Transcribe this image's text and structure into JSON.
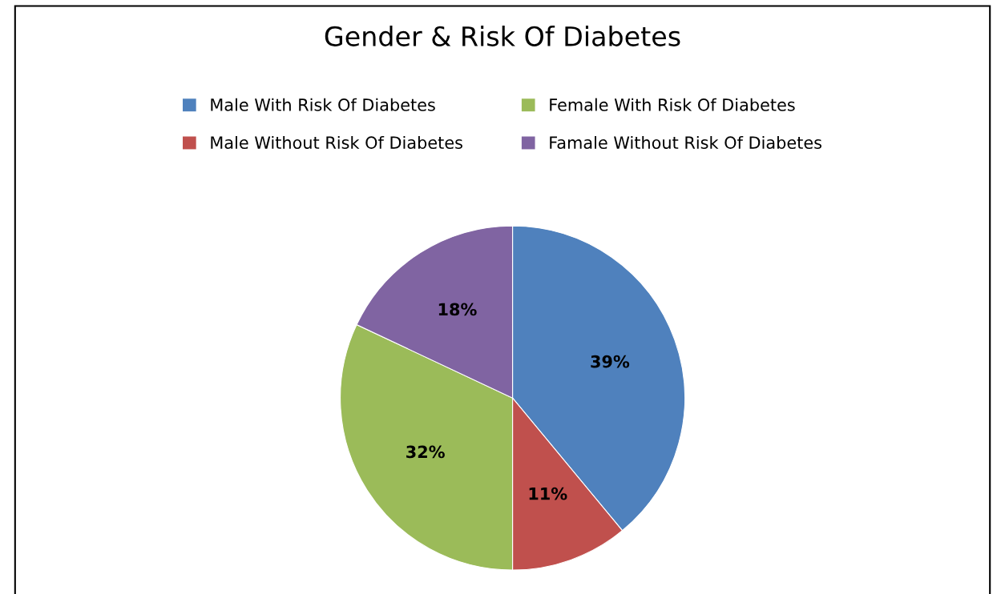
{
  "chart_data": {
    "type": "pie",
    "title": "Gender & Risk Of Diabetes",
    "categories": [
      "Male With Risk Of Diabetes",
      "Male Without Risk Of Diabetes",
      "Female With Risk Of Diabetes",
      "Famale Without Risk Of Diabetes"
    ],
    "values": [
      39,
      11,
      32,
      18
    ],
    "value_labels": [
      "39%",
      "11%",
      "32%",
      "18%"
    ],
    "colors": [
      "#4f81bd",
      "#c0504d",
      "#9bbb59",
      "#8064a2"
    ],
    "legend": "top"
  }
}
